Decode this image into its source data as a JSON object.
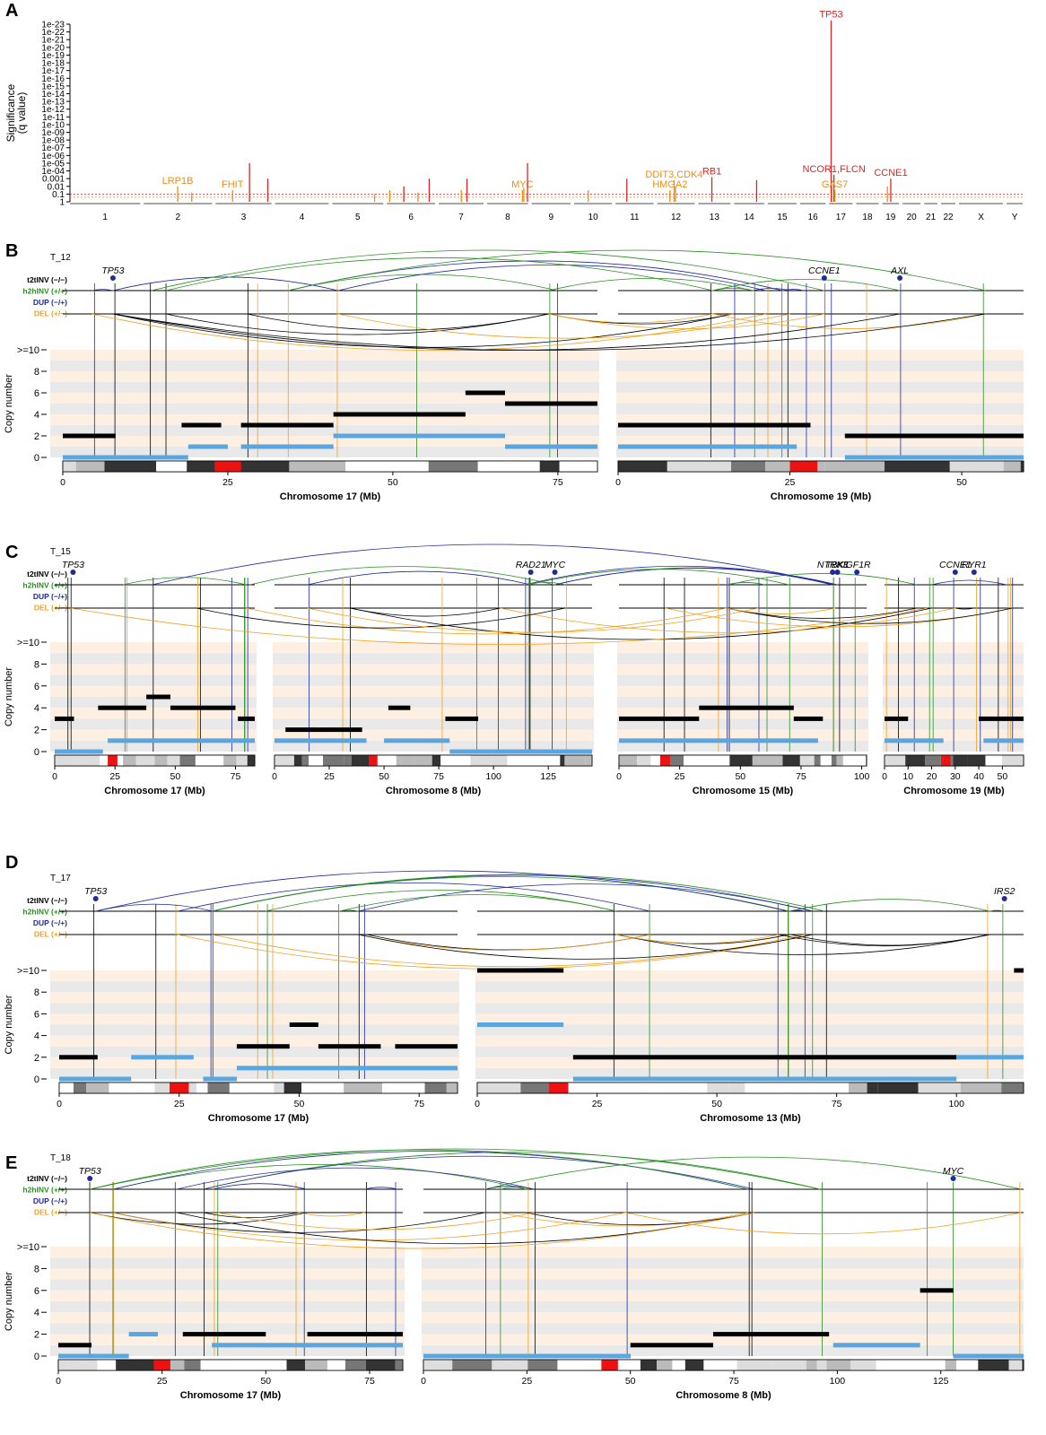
{
  "chart_data": [
    {
      "type": "bar",
      "panel": "A",
      "ylabel": "Significance\n(q value)",
      "y_ticks": [
        "1e-23",
        "1e-22",
        "1e-21",
        "1e-20",
        "1e-19",
        "1e-18",
        "1e-17",
        "1e-16",
        "1e-15",
        "1e-14",
        "1e-13",
        "1e-12",
        "1e-11",
        "1e-10",
        "1e-09",
        "1e-08",
        "1e-07",
        "1e-06",
        "1e-05",
        "1e-04",
        "0.001",
        "0.01",
        "0.1",
        "1"
      ],
      "chromosomes": [
        "1",
        "2",
        "3",
        "4",
        "5",
        "6",
        "7",
        "8",
        "9",
        "10",
        "11",
        "12",
        "13",
        "14",
        "15",
        "16",
        "17",
        "18",
        "19",
        "20",
        "21",
        "22",
        "X",
        "Y"
      ],
      "chrom_sizes": [
        249,
        242,
        198,
        190,
        181,
        171,
        159,
        145,
        138,
        134,
        135,
        133,
        114,
        107,
        102,
        90,
        83,
        80,
        59,
        64,
        47,
        51,
        156,
        57
      ],
      "thresholds": [
        {
          "q": 0.1,
          "color": "#d62728"
        },
        {
          "q": 0.25,
          "color": "#ff9900"
        }
      ],
      "peaks": [
        {
          "chrom": "2",
          "pos": 120,
          "log10q": 2.0,
          "color": "#f28c0f",
          "label": "LRP1B"
        },
        {
          "chrom": "2",
          "pos": 170,
          "log10q": 1.2,
          "color": "#f28c0f"
        },
        {
          "chrom": "3",
          "pos": 60,
          "log10q": 1.5,
          "color": "#f28c0f",
          "label": "FHIT"
        },
        {
          "chrom": "3",
          "pos": 120,
          "log10q": 5.0,
          "color": "#d62728"
        },
        {
          "chrom": "3",
          "pos": 185,
          "log10q": 3.0,
          "color": "#d62728"
        },
        {
          "chrom": "5",
          "pos": 150,
          "log10q": 1.0,
          "color": "#f28c0f"
        },
        {
          "chrom": "6",
          "pos": 10,
          "log10q": 1.5,
          "color": "#f28c0f"
        },
        {
          "chrom": "6",
          "pos": 60,
          "log10q": 2.0,
          "color": "#d62728"
        },
        {
          "chrom": "6",
          "pos": 110,
          "log10q": 1.2,
          "color": "#f28c0f"
        },
        {
          "chrom": "6",
          "pos": 150,
          "log10q": 3.0,
          "color": "#d62728"
        },
        {
          "chrom": "7",
          "pos": 80,
          "log10q": 1.5,
          "color": "#f28c0f"
        },
        {
          "chrom": "7",
          "pos": 100,
          "log10q": 3.0,
          "color": "#d62728"
        },
        {
          "chrom": "8",
          "pos": 125,
          "log10q": 1.5,
          "color": "#f28c0f",
          "label": "MYC"
        },
        {
          "chrom": "8",
          "pos": 130,
          "log10q": 1.8,
          "color": "#f28c0f"
        },
        {
          "chrom": "8",
          "pos": 143,
          "log10q": 5.0,
          "color": "#d62728"
        },
        {
          "chrom": "10",
          "pos": 50,
          "log10q": 1.5,
          "color": "#f28c0f"
        },
        {
          "chrom": "11",
          "pos": 40,
          "log10q": 3.0,
          "color": "#d62728"
        },
        {
          "chrom": "12",
          "pos": 45,
          "log10q": 1.5,
          "color": "#f28c0f",
          "label": "HMGA2"
        },
        {
          "chrom": "12",
          "pos": 60,
          "log10q": 2.8,
          "color": "#f28c0f",
          "label": "DDIT3,CDK4"
        },
        {
          "chrom": "12",
          "pos": 65,
          "log10q": 2.0,
          "color": "#f28c0f"
        },
        {
          "chrom": "13",
          "pos": 48,
          "log10q": 3.2,
          "color": "#d62728",
          "label": "RB1"
        },
        {
          "chrom": "14",
          "pos": 80,
          "log10q": 2.8,
          "color": "#d62728"
        },
        {
          "chrom": "17",
          "pos": 7,
          "log10q": 23.5,
          "color": "#d62728",
          "label": "TP53"
        },
        {
          "chrom": "17",
          "pos": 10,
          "log10q": 2.0,
          "color": "#f28c0f"
        },
        {
          "chrom": "17",
          "pos": 17,
          "log10q": 3.5,
          "color": "#d62728",
          "label": "NCOR1,FLCN"
        },
        {
          "chrom": "17",
          "pos": 20,
          "log10q": 1.5,
          "color": "#f28c0f",
          "label": "GAS7"
        },
        {
          "chrom": "19",
          "pos": 18,
          "log10q": 2.0,
          "color": "#f28c0f"
        },
        {
          "chrom": "19",
          "pos": 30,
          "log10q": 3.0,
          "color": "#d62728",
          "label": "CCNE1"
        }
      ]
    },
    {
      "type": "line",
      "panel": "B",
      "sample": "T_12",
      "xlabels": [
        "Chromosome 17 (Mb)",
        "Chromosome 19 (Mb)"
      ],
      "chroms": [
        {
          "name": "17",
          "len": 81,
          "ticks": [
            0,
            25,
            50,
            75
          ],
          "centromere": 25
        },
        {
          "name": "19",
          "len": 59,
          "ticks": [
            0,
            25,
            50
          ],
          "centromere": 27
        }
      ],
      "genes": [
        {
          "name": "TP53",
          "chrom": 0,
          "pos": 7.6
        },
        {
          "name": "CCNE1",
          "chrom": 1,
          "pos": 30
        },
        {
          "name": "AXL",
          "chrom": 1,
          "pos": 41
        }
      ],
      "ylabel": "Copy number",
      "y_ticks": [
        "0",
        "2",
        "4",
        "6",
        "8",
        ">=10"
      ],
      "sv_types": [
        {
          "label": "t2tINV (−/−)",
          "color": "#000000"
        },
        {
          "label": "h2hINV (+/+)",
          "color": "#2a8f22"
        },
        {
          "label": "DUP (−/+)",
          "color": "#1f2a9c"
        },
        {
          "label": "DEL (+/−)",
          "color": "#f0a020"
        }
      ],
      "total_cn": [
        [
          {
            "x0": 0,
            "x1": 8,
            "cn": 2
          },
          {
            "x0": 18,
            "x1": 24,
            "cn": 3
          },
          {
            "x0": 27,
            "x1": 41,
            "cn": 3
          },
          {
            "x0": 41,
            "x1": 61,
            "cn": 4
          },
          {
            "x0": 61,
            "x1": 67,
            "cn": 6
          },
          {
            "x0": 67,
            "x1": 81,
            "cn": 5
          }
        ],
        [
          {
            "x0": 0,
            "x1": 28,
            "cn": 3
          },
          {
            "x0": 33,
            "x1": 59,
            "cn": 2
          }
        ]
      ],
      "minor_cn": [
        [
          {
            "x0": 0,
            "x1": 19,
            "cn": 0
          },
          {
            "x0": 19,
            "x1": 25,
            "cn": 1
          },
          {
            "x0": 27,
            "x1": 41,
            "cn": 1
          },
          {
            "x0": 41,
            "x1": 67,
            "cn": 2
          },
          {
            "x0": 67,
            "x1": 81,
            "cn": 1
          }
        ],
        [
          {
            "x0": 0,
            "x1": 26,
            "cn": 1
          },
          {
            "x0": 33,
            "x1": 59,
            "cn": 0
          }
        ]
      ]
    },
    {
      "type": "line",
      "panel": "C",
      "sample": "T_15",
      "xlabels": [
        "Chromosome 17 (Mb)",
        "Chromosome 8 (Mb)",
        "Chromosome 15 (Mb)",
        "Chromosome 19 (Mb)"
      ],
      "chroms": [
        {
          "name": "17",
          "len": 83,
          "ticks": [
            0,
            25,
            50,
            75
          ],
          "centromere": 24
        },
        {
          "name": "8",
          "len": 145,
          "ticks": [
            0,
            25,
            50,
            75,
            100,
            125
          ],
          "centromere": 45
        },
        {
          "name": "15",
          "len": 102,
          "ticks": [
            0,
            25,
            50,
            75,
            100
          ],
          "centromere": 19
        },
        {
          "name": "19",
          "len": 59,
          "ticks": [
            0,
            10,
            20,
            30,
            40,
            50
          ],
          "centromere": 26
        }
      ],
      "genes": [
        {
          "name": "TP53",
          "chrom": 0,
          "pos": 7.6
        },
        {
          "name": "RAD21",
          "chrom": 1,
          "pos": 117
        },
        {
          "name": "MYC",
          "chrom": 1,
          "pos": 128
        },
        {
          "name": "NTRK3",
          "chrom": 2,
          "pos": 88
        },
        {
          "name": "TBK1",
          "chrom": 2,
          "pos": 90
        },
        {
          "name": "IGF1R",
          "chrom": 2,
          "pos": 98
        },
        {
          "name": "CCNE1",
          "chrom": 3,
          "pos": 30
        },
        {
          "name": "RYR1",
          "chrom": 3,
          "pos": 38
        }
      ],
      "ylabel": "Copy number",
      "y_ticks": [
        "0",
        "2",
        "4",
        "6",
        "8",
        ">=10"
      ],
      "sv_types": [
        {
          "label": "t2tINV (−/−)",
          "color": "#000000"
        },
        {
          "label": "h2hINV (+/+)",
          "color": "#2a8f22"
        },
        {
          "label": "DUP (−/+)",
          "color": "#1f2a9c"
        },
        {
          "label": "DEL (+/−)",
          "color": "#f0a020"
        }
      ],
      "total_cn": [
        [
          {
            "x0": 0,
            "x1": 8,
            "cn": 3
          },
          {
            "x0": 18,
            "x1": 38,
            "cn": 4
          },
          {
            "x0": 38,
            "x1": 48,
            "cn": 5
          },
          {
            "x0": 48,
            "x1": 75,
            "cn": 4
          },
          {
            "x0": 76,
            "x1": 83,
            "cn": 3
          }
        ],
        [
          {
            "x0": 5,
            "x1": 40,
            "cn": 2
          },
          {
            "x0": 52,
            "x1": 62,
            "cn": 4
          },
          {
            "x0": 78,
            "x1": 93,
            "cn": 3
          }
        ],
        [
          {
            "x0": 0,
            "x1": 33,
            "cn": 3
          },
          {
            "x0": 33,
            "x1": 72,
            "cn": 4
          },
          {
            "x0": 72,
            "x1": 84,
            "cn": 3
          }
        ],
        [
          {
            "x0": 0,
            "x1": 10,
            "cn": 3
          },
          {
            "x0": 40,
            "x1": 59,
            "cn": 3
          }
        ]
      ],
      "minor_cn": [
        [
          {
            "x0": 0,
            "x1": 20,
            "cn": 0
          },
          {
            "x0": 22,
            "x1": 83,
            "cn": 1
          }
        ],
        [
          {
            "x0": 0,
            "x1": 42,
            "cn": 1
          },
          {
            "x0": 50,
            "x1": 80,
            "cn": 1
          },
          {
            "x0": 80,
            "x1": 145,
            "cn": 0
          }
        ],
        [
          {
            "x0": 0,
            "x1": 82,
            "cn": 1
          }
        ],
        [
          {
            "x0": 0,
            "x1": 25,
            "cn": 1
          },
          {
            "x0": 42,
            "x1": 59,
            "cn": 1
          }
        ]
      ]
    },
    {
      "type": "line",
      "panel": "D",
      "sample": "T_17",
      "xlabels": [
        "Chromosome 17 (Mb)",
        "Chromosome 13 (Mb)"
      ],
      "chroms": [
        {
          "name": "17",
          "len": 83,
          "ticks": [
            0,
            25,
            50,
            75
          ],
          "centromere": 25
        },
        {
          "name": "13",
          "len": 114,
          "ticks": [
            0,
            25,
            50,
            75,
            100
          ],
          "centromere": 17
        }
      ],
      "genes": [
        {
          "name": "TP53",
          "chrom": 0,
          "pos": 7.6
        },
        {
          "name": "IRS2",
          "chrom": 1,
          "pos": 110
        }
      ],
      "ylabel": "Copy number",
      "y_ticks": [
        "0",
        "2",
        "4",
        "6",
        "8",
        ">=10"
      ],
      "sv_types": [
        {
          "label": "t2tINV (−/−)",
          "color": "#000000"
        },
        {
          "label": "h2hINV (+/+)",
          "color": "#2a8f22"
        },
        {
          "label": "DUP (−/+)",
          "color": "#1f2a9c"
        },
        {
          "label": "DEL (+/−)",
          "color": "#f0a020"
        }
      ],
      "total_cn": [
        [
          {
            "x0": 0,
            "x1": 8,
            "cn": 2
          },
          {
            "x0": 37,
            "x1": 48,
            "cn": 3
          },
          {
            "x0": 48,
            "x1": 54,
            "cn": 5
          },
          {
            "x0": 54,
            "x1": 67,
            "cn": 3
          },
          {
            "x0": 70,
            "x1": 83,
            "cn": 3
          }
        ],
        [
          {
            "x0": 0,
            "x1": 18,
            "cn": 10
          },
          {
            "x0": 20,
            "x1": 100,
            "cn": 2
          },
          {
            "x0": 112,
            "x1": 114,
            "cn": 10
          }
        ]
      ],
      "minor_cn": [
        [
          {
            "x0": 0,
            "x1": 15,
            "cn": 0
          },
          {
            "x0": 15,
            "x1": 28,
            "cn": 2
          },
          {
            "x0": 30,
            "x1": 37,
            "cn": 0
          },
          {
            "x0": 37,
            "x1": 83,
            "cn": 1
          }
        ],
        [
          {
            "x0": 0,
            "x1": 18,
            "cn": 5
          },
          {
            "x0": 20,
            "x1": 100,
            "cn": 0
          },
          {
            "x0": 100,
            "x1": 114,
            "cn": 2
          }
        ]
      ]
    },
    {
      "type": "line",
      "panel": "E",
      "sample": "T_18",
      "xlabels": [
        "Chromosome 17 (Mb)",
        "Chromosome 8 (Mb)"
      ],
      "chroms": [
        {
          "name": "17",
          "len": 83,
          "ticks": [
            0,
            25,
            50,
            75
          ],
          "centromere": 25
        },
        {
          "name": "8",
          "len": 145,
          "ticks": [
            0,
            25,
            50,
            75,
            100,
            125
          ],
          "centromere": 45
        }
      ],
      "genes": [
        {
          "name": "TP53",
          "chrom": 0,
          "pos": 7.6
        },
        {
          "name": "MYC",
          "chrom": 1,
          "pos": 128
        }
      ],
      "ylabel": "Copy number",
      "y_ticks": [
        "0",
        "2",
        "4",
        "6",
        "8",
        ">=10"
      ],
      "sv_types": [
        {
          "label": "t2tINV (−/−)",
          "color": "#000000"
        },
        {
          "label": "h2hINV (+/+)",
          "color": "#2a8f22"
        },
        {
          "label": "DUP (−/+)",
          "color": "#1f2a9c"
        },
        {
          "label": "DEL (+/−)",
          "color": "#f0a020"
        }
      ],
      "total_cn": [
        [
          {
            "x0": 0,
            "x1": 8,
            "cn": 1
          },
          {
            "x0": 30,
            "x1": 50,
            "cn": 2
          },
          {
            "x0": 60,
            "x1": 83,
            "cn": 2
          }
        ],
        [
          {
            "x0": 0,
            "x1": 50,
            "cn": 0
          },
          {
            "x0": 50,
            "x1": 70,
            "cn": 1
          },
          {
            "x0": 70,
            "x1": 98,
            "cn": 2
          },
          {
            "x0": 120,
            "x1": 128,
            "cn": 6
          }
        ]
      ],
      "minor_cn": [
        [
          {
            "x0": 0,
            "x1": 17,
            "cn": 0
          },
          {
            "x0": 17,
            "x1": 24,
            "cn": 2
          },
          {
            "x0": 37,
            "x1": 83,
            "cn": 1
          }
        ],
        [
          {
            "x0": 0,
            "x1": 50,
            "cn": 0
          },
          {
            "x0": 99,
            "x1": 120,
            "cn": 1
          },
          {
            "x0": 128,
            "x1": 145,
            "cn": 0
          }
        ]
      ]
    }
  ],
  "colors": {
    "black": "#000000",
    "h2h": "#2a8f22",
    "dup": "#1f2a9c",
    "del": "#f0a020",
    "minor": "#5aa6e0",
    "sig_red": "#d62728",
    "sig_orange": "#f28c0f",
    "band_peach": "#fdf0e3",
    "band_gray": "#e9e9e9",
    "centromere": "#ee1111"
  }
}
